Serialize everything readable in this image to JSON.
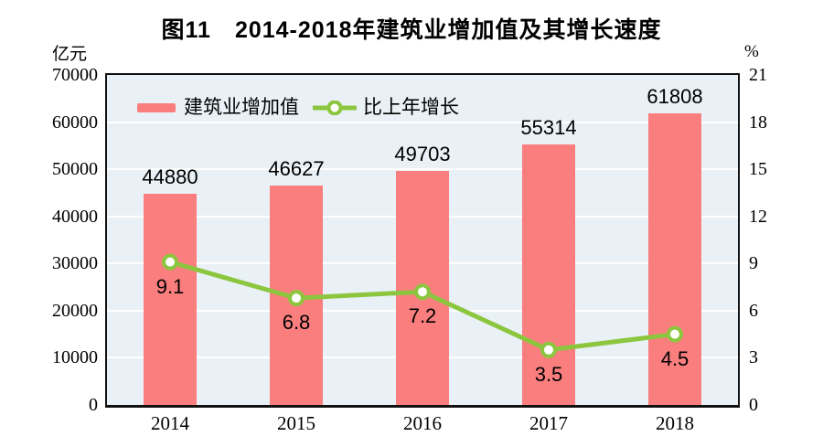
{
  "title": {
    "prefix": "图11",
    "text": "2014-2018年建筑业增加值及其增长速度"
  },
  "axes": {
    "left": {
      "unit": "亿元",
      "ticks": [
        0,
        10000,
        20000,
        30000,
        40000,
        50000,
        60000,
        70000
      ]
    },
    "right": {
      "unit": "%",
      "ticks": [
        0,
        3,
        6,
        9,
        12,
        15,
        18,
        21
      ]
    }
  },
  "legend": [
    {
      "label": "建筑业增加值",
      "type": "bar",
      "color": "#fa7e7e"
    },
    {
      "label": "比上年增长",
      "type": "line",
      "color": "#8cc63f"
    }
  ],
  "colors": {
    "bar_fill": "#fa7e7e",
    "line_stroke": "#8cc63f",
    "marker_fill": "#ffffff",
    "plot_background": "#e9f1f6",
    "gridline": "#ffffff",
    "frame": "#111111"
  },
  "chart_data": {
    "type": "bar+line",
    "title": "图11 2014-2018年建筑业增加值及其增长速度",
    "categories": [
      "2014",
      "2015",
      "2016",
      "2017",
      "2018"
    ],
    "series": [
      {
        "name": "建筑业增加值",
        "type": "bar",
        "axis": "left",
        "values": [
          44880,
          46627,
          49703,
          55314,
          61808
        ],
        "color": "#fa7e7e"
      },
      {
        "name": "比上年增长",
        "type": "line",
        "axis": "right",
        "values": [
          9.1,
          6.8,
          7.2,
          3.5,
          4.5
        ],
        "color": "#8cc63f"
      }
    ],
    "left_ylabel": "亿元",
    "right_ylabel": "%",
    "left_ylim": [
      0,
      70000
    ],
    "right_ylim": [
      0,
      21
    ],
    "grid": true,
    "legend_position": "top-left-inside"
  }
}
